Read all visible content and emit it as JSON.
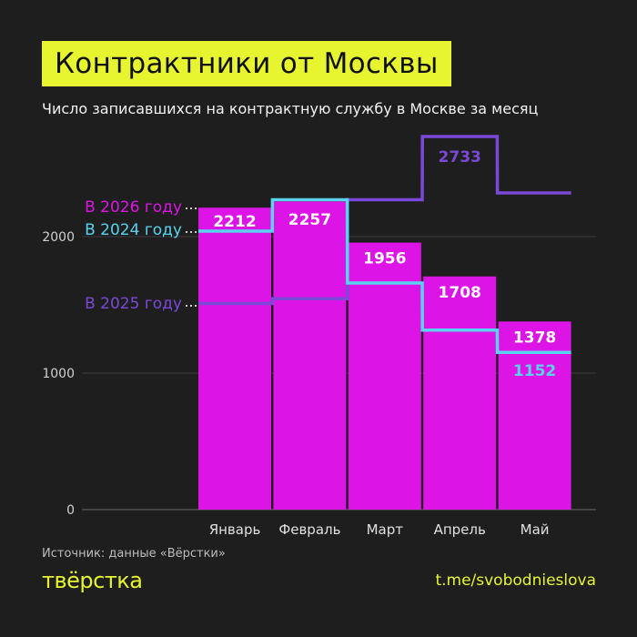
{
  "header": {
    "title": "Контрактники от Москвы",
    "subtitle": "Число записавшихся на контрактную службу в Москве за месяц"
  },
  "footer": {
    "source": "Источник: данные «Вёрстки»",
    "logo": "твёрстка",
    "link": "t.me/svobodnieslova"
  },
  "colors": {
    "background": "#1e1e1e",
    "accent": "#e7f531",
    "bar_2026": "#dd14e6",
    "line_2024": "#5ad3f0",
    "line_2025": "#7b48d8"
  },
  "chart_data": {
    "type": "bar",
    "categories": [
      "Январь",
      "Февраль",
      "Март",
      "Апрель",
      "Май"
    ],
    "ylim": [
      0,
      2900
    ],
    "yticks": [
      0,
      1000,
      2000
    ],
    "grid": true,
    "series": [
      {
        "name": "В 2026 году",
        "kind": "bar",
        "values": [
          2212,
          2257,
          1956,
          1708,
          1378
        ],
        "labels": [
          "2212",
          "2257",
          "1956",
          "1708",
          "1378"
        ]
      },
      {
        "name": "В 2024 году",
        "kind": "step",
        "values": [
          2040,
          2270,
          1660,
          1315,
          1152
        ],
        "labels": [
          "",
          "",
          "",
          "",
          "1152"
        ]
      },
      {
        "name": "В 2025 году",
        "kind": "step",
        "values": [
          1510,
          1545,
          2270,
          2733,
          2320
        ],
        "labels": [
          "",
          "",
          "",
          "2733",
          ""
        ]
      }
    ]
  }
}
